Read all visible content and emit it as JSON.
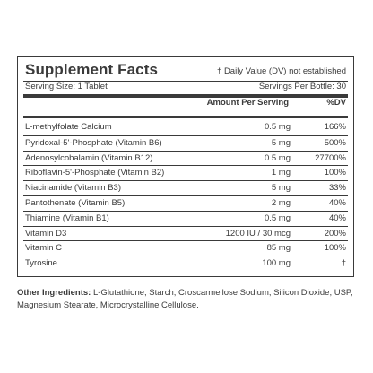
{
  "panel": {
    "title": "Supplement Facts",
    "dv_note": "† Daily Value (DV) not established",
    "serving_size": "Serving Size: 1 Tablet",
    "servings_per": "Servings Per Bottle: 30",
    "col_amount": "Amount Per Serving",
    "col_dv": "%DV",
    "rows": [
      {
        "name": "L-methylfolate Calcium",
        "amount": "0.5 mg",
        "dv": "166%"
      },
      {
        "name": "Pyridoxal-5'-Phosphate (Vitamin B6)",
        "amount": "5 mg",
        "dv": "500%"
      },
      {
        "name": "Adenosylcobalamin (Vitamin B12)",
        "amount": "0.5 mg",
        "dv": "27700%"
      },
      {
        "name": "Riboflavin-5'-Phosphate (Vitamin B2)",
        "amount": "1 mg",
        "dv": "100%"
      },
      {
        "name": "Niacinamide (Vitamin B3)",
        "amount": "5 mg",
        "dv": "33%"
      },
      {
        "name": "Pantothenate (Vitamin B5)",
        "amount": "2 mg",
        "dv": "40%"
      },
      {
        "name": "Thiamine (Vitamin B1)",
        "amount": "0.5 mg",
        "dv": "40%"
      },
      {
        "name": "Vitamin D3",
        "amount": "1200 IU / 30 mcg",
        "dv": "200%"
      },
      {
        "name": "Vitamin C",
        "amount": "85 mg",
        "dv": "100%"
      },
      {
        "name": "Tyrosine",
        "amount": "100 mg",
        "dv": "†"
      }
    ]
  },
  "other_ingredients": {
    "label": "Other Ingredients:",
    "text": " L-Glutathione, Starch, Croscarmellose Sodium, Silicon Dioxide, USP, Magnesium Stearate, Microcrystalline Cellulose."
  }
}
